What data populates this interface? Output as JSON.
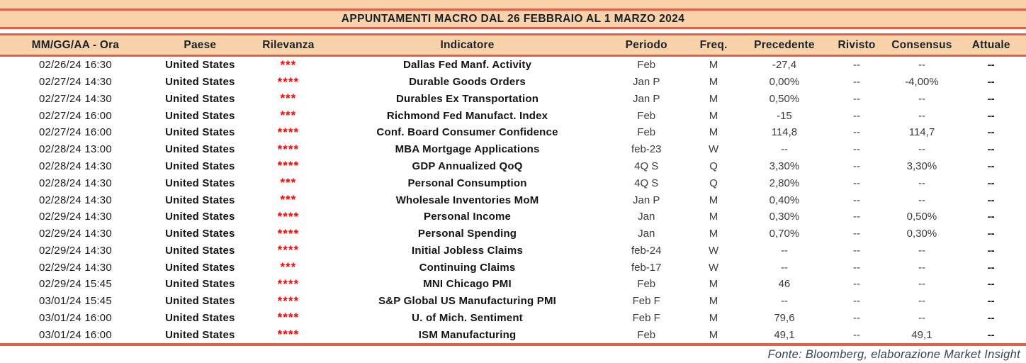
{
  "title": "APPUNTAMENTI MACRO DAL 26 FEBBRAIO AL 1 MARZO 2024",
  "footer": "Fonte: Bloomberg, elaborazione Market Insight",
  "colors": {
    "band_bg": "#F9D2A9",
    "rule": "#E2604A",
    "header_text": "#182228",
    "star_red": "#FF0000",
    "footer_text": "#37454D"
  },
  "table": {
    "columns": [
      {
        "key": "date",
        "label": "MM/GG/AA - Ora"
      },
      {
        "key": "country",
        "label": "Paese"
      },
      {
        "key": "relevance",
        "label": "Rilevanza"
      },
      {
        "key": "indicator",
        "label": "Indicatore"
      },
      {
        "key": "period",
        "label": "Periodo"
      },
      {
        "key": "freq",
        "label": "Freq."
      },
      {
        "key": "previous",
        "label": "Precedente"
      },
      {
        "key": "revised",
        "label": "Rivisto"
      },
      {
        "key": "consensus",
        "label": "Consensus"
      },
      {
        "key": "actual",
        "label": "Attuale"
      }
    ],
    "rows": [
      {
        "date": "02/26/24 16:30",
        "country": "United States",
        "relevance": "***",
        "indicator": "Dallas Fed Manf. Activity",
        "period": "Feb",
        "freq": "M",
        "previous": "-27,4",
        "revised": "--",
        "consensus": "--",
        "actual": "--"
      },
      {
        "date": "02/27/24 14:30",
        "country": "United States",
        "relevance": "****",
        "indicator": "Durable Goods Orders",
        "period": "Jan P",
        "freq": "M",
        "previous": "0,00%",
        "revised": "--",
        "consensus": "-4,00%",
        "actual": "--"
      },
      {
        "date": "02/27/24 14:30",
        "country": "United States",
        "relevance": "***",
        "indicator": "Durables Ex Transportation",
        "period": "Jan P",
        "freq": "M",
        "previous": "0,50%",
        "revised": "--",
        "consensus": "--",
        "actual": "--"
      },
      {
        "date": "02/27/24 16:00",
        "country": "United States",
        "relevance": "***",
        "indicator": "Richmond Fed Manufact. Index",
        "period": "Feb",
        "freq": "M",
        "previous": "-15",
        "revised": "--",
        "consensus": "--",
        "actual": "--"
      },
      {
        "date": "02/27/24 16:00",
        "country": "United States",
        "relevance": "****",
        "indicator": "Conf. Board Consumer Confidence",
        "period": "Feb",
        "freq": "M",
        "previous": "114,8",
        "revised": "--",
        "consensus": "114,7",
        "actual": "--"
      },
      {
        "date": "02/28/24 13:00",
        "country": "United States",
        "relevance": "****",
        "indicator": "MBA Mortgage Applications",
        "period": "feb-23",
        "freq": "W",
        "previous": "--",
        "revised": "--",
        "consensus": "--",
        "actual": "--"
      },
      {
        "date": "02/28/24 14:30",
        "country": "United States",
        "relevance": "****",
        "indicator": "GDP Annualized QoQ",
        "period": "4Q S",
        "freq": "Q",
        "previous": "3,30%",
        "revised": "--",
        "consensus": "3,30%",
        "actual": "--"
      },
      {
        "date": "02/28/24 14:30",
        "country": "United States",
        "relevance": "***",
        "indicator": "Personal Consumption",
        "period": "4Q S",
        "freq": "Q",
        "previous": "2,80%",
        "revised": "--",
        "consensus": "--",
        "actual": "--"
      },
      {
        "date": "02/28/24 14:30",
        "country": "United States",
        "relevance": "***",
        "indicator": "Wholesale Inventories MoM",
        "period": "Jan P",
        "freq": "M",
        "previous": "0,40%",
        "revised": "--",
        "consensus": "--",
        "actual": "--"
      },
      {
        "date": "02/29/24 14:30",
        "country": "United States",
        "relevance": "****",
        "indicator": "Personal Income",
        "period": "Jan",
        "freq": "M",
        "previous": "0,30%",
        "revised": "--",
        "consensus": "0,50%",
        "actual": "--"
      },
      {
        "date": "02/29/24 14:30",
        "country": "United States",
        "relevance": "****",
        "indicator": "Personal Spending",
        "period": "Jan",
        "freq": "M",
        "previous": "0,70%",
        "revised": "--",
        "consensus": "0,30%",
        "actual": "--"
      },
      {
        "date": "02/29/24 14:30",
        "country": "United States",
        "relevance": "****",
        "indicator": "Initial Jobless Claims",
        "period": "feb-24",
        "freq": "W",
        "previous": "--",
        "revised": "--",
        "consensus": "--",
        "actual": "--"
      },
      {
        "date": "02/29/24 14:30",
        "country": "United States",
        "relevance": "***",
        "indicator": "Continuing Claims",
        "period": "feb-17",
        "freq": "W",
        "previous": "--",
        "revised": "--",
        "consensus": "--",
        "actual": "--"
      },
      {
        "date": "02/29/24 15:45",
        "country": "United States",
        "relevance": "****",
        "indicator": "MNI Chicago PMI",
        "period": "Feb",
        "freq": "M",
        "previous": "46",
        "revised": "--",
        "consensus": "--",
        "actual": "--"
      },
      {
        "date": "03/01/24 15:45",
        "country": "United States",
        "relevance": "****",
        "indicator": "S&P Global US Manufacturing PMI",
        "period": "Feb F",
        "freq": "M",
        "previous": "--",
        "revised": "--",
        "consensus": "--",
        "actual": "--"
      },
      {
        "date": "03/01/24 16:00",
        "country": "United States",
        "relevance": "****",
        "indicator": "U. of Mich. Sentiment",
        "period": "Feb F",
        "freq": "M",
        "previous": "79,6",
        "revised": "--",
        "consensus": "--",
        "actual": "--"
      },
      {
        "date": "03/01/24 16:00",
        "country": "United States",
        "relevance": "****",
        "indicator": "ISM Manufacturing",
        "period": "Feb",
        "freq": "M",
        "previous": "49,1",
        "revised": "--",
        "consensus": "49,1",
        "actual": "--"
      }
    ]
  }
}
